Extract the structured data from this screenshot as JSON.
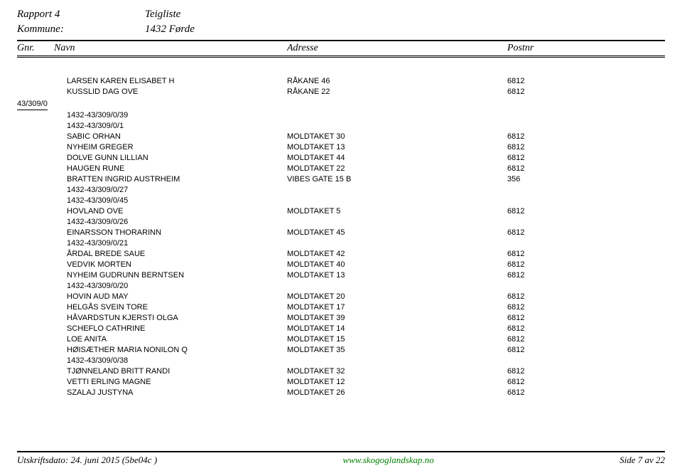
{
  "header": {
    "rapport_label": "Rapport 4",
    "rapport_title": "Teigliste",
    "kommune_label": "Kommune:",
    "kommune_value": "1432 Førde"
  },
  "columns": {
    "gnr": "Gnr.",
    "navn": "Navn",
    "adresse": "Adresse",
    "postnr": "Postnr"
  },
  "top_rows": [
    {
      "navn": "LARSEN KAREN ELISABET H",
      "adresse": "RÅKANE 46",
      "postnr": "6812"
    },
    {
      "navn": "KUSSLID DAG OVE",
      "adresse": "RÅKANE 22",
      "postnr": "6812"
    }
  ],
  "group_label": "43/309/0",
  "sections": [
    {
      "codes": [
        "1432-43/309/0/39",
        "1432-43/309/0/1"
      ],
      "rows": [
        {
          "navn": "SABIC ORHAN",
          "adresse": "MOLDTAKET 30",
          "postnr": "6812"
        },
        {
          "navn": "NYHEIM GREGER",
          "adresse": "MOLDTAKET 13",
          "postnr": "6812"
        },
        {
          "navn": "DOLVE GUNN LILLIAN",
          "adresse": "MOLDTAKET 44",
          "postnr": "6812"
        },
        {
          "navn": "HAUGEN RUNE",
          "adresse": "MOLDTAKET 22",
          "postnr": "6812"
        },
        {
          "navn": "BRATTEN INGRID AUSTRHEIM",
          "adresse": "VIBES GATE 15 B",
          "postnr": "356"
        }
      ]
    },
    {
      "codes": [
        "1432-43/309/0/27",
        "1432-43/309/0/45"
      ],
      "rows": [
        {
          "navn": "HOVLAND OVE",
          "adresse": "MOLDTAKET 5",
          "postnr": "6812"
        }
      ]
    },
    {
      "codes": [
        "1432-43/309/0/26"
      ],
      "rows": [
        {
          "navn": "EINARSSON THORARINN",
          "adresse": "MOLDTAKET 45",
          "postnr": "6812"
        }
      ]
    },
    {
      "codes": [
        "1432-43/309/0/21"
      ],
      "rows": [
        {
          "navn": "ÅRDAL BREDE SAUE",
          "adresse": "MOLDTAKET 42",
          "postnr": "6812"
        },
        {
          "navn": "VEDVIK MORTEN",
          "adresse": "MOLDTAKET 40",
          "postnr": "6812"
        },
        {
          "navn": "NYHEIM GUDRUNN BERNTSEN",
          "adresse": "MOLDTAKET 13",
          "postnr": "6812"
        }
      ]
    },
    {
      "codes": [
        "1432-43/309/0/20"
      ],
      "rows": [
        {
          "navn": "HOVIN AUD MAY",
          "adresse": "MOLDTAKET 20",
          "postnr": "6812"
        },
        {
          "navn": "HELGÅS SVEIN TORE",
          "adresse": "MOLDTAKET 17",
          "postnr": "6812"
        },
        {
          "navn": "HÅVARDSTUN KJERSTI OLGA",
          "adresse": "MOLDTAKET 39",
          "postnr": "6812"
        },
        {
          "navn": "SCHEFLO CATHRINE",
          "adresse": "MOLDTAKET 14",
          "postnr": "6812"
        },
        {
          "navn": "LOE ANITA",
          "adresse": "MOLDTAKET 15",
          "postnr": "6812"
        },
        {
          "navn": "HØISÆTHER MARIA NONILON Q",
          "adresse": "MOLDTAKET 35",
          "postnr": "6812"
        }
      ]
    },
    {
      "codes": [
        "1432-43/309/0/38"
      ],
      "rows": [
        {
          "navn": "TJØNNELAND BRITT RANDI",
          "adresse": "MOLDTAKET 32",
          "postnr": "6812"
        },
        {
          "navn": "VETTI ERLING MAGNE",
          "adresse": "MOLDTAKET 12",
          "postnr": "6812"
        },
        {
          "navn": "SZALAJ JUSTYNA",
          "adresse": "MOLDTAKET 26",
          "postnr": "6812"
        }
      ]
    }
  ],
  "footer": {
    "left": "Utskriftsdato: 24. juni  2015 (5be04c )",
    "center": "www.skogoglandskap.no",
    "right": "Side 7 av 22"
  }
}
